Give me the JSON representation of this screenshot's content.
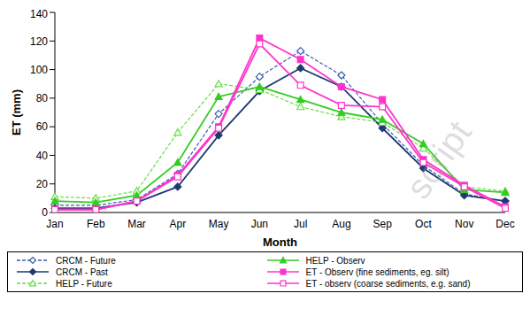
{
  "chart_data": {
    "type": "line",
    "x_label": "Month",
    "y_label": "ET (mm)",
    "categories": [
      "Jan",
      "Feb",
      "Mar",
      "Apr",
      "May",
      "Jun",
      "Jul",
      "Aug",
      "Sep",
      "Oct",
      "Nov",
      "Dec"
    ],
    "ylim": [
      0,
      140
    ],
    "yticks": [
      0,
      20,
      40,
      60,
      80,
      100,
      120,
      140
    ],
    "grid": false,
    "legend": "bottom",
    "annotations": [
      "script"
    ],
    "series": [
      {
        "name": "CRCM - Future",
        "color": "#3b5bb0",
        "marker": "diamond-open",
        "line_style": "dashed",
        "values": [
          5,
          5,
          9,
          27,
          69,
          95,
          113,
          96,
          62,
          33,
          13,
          8
        ]
      },
      {
        "name": "CRCM - Past",
        "color": "#1f3a6e",
        "marker": "diamond",
        "line_style": "solid",
        "values": [
          3,
          3,
          7,
          18,
          54,
          85,
          101,
          88,
          59,
          31,
          12,
          8
        ]
      },
      {
        "name": "HELP - Future",
        "color": "#66dd44",
        "marker": "triangle-open",
        "line_style": "dashed",
        "values": [
          11,
          10,
          15,
          56,
          90,
          86,
          74,
          67,
          63,
          45,
          18,
          15
        ]
      },
      {
        "name": "HELP - Observ",
        "color": "#33cc22",
        "marker": "triangle",
        "line_style": "solid",
        "values": [
          8,
          7,
          12,
          35,
          81,
          88,
          79,
          70,
          65,
          48,
          16,
          14
        ]
      },
      {
        "name": "ET - Observ (fine sediments, eg. silt)",
        "color": "#ff33cc",
        "marker": "square",
        "line_style": "solid",
        "values": [
          2,
          2,
          8,
          26,
          60,
          122,
          107,
          88,
          79,
          37,
          19,
          4
        ]
      },
      {
        "name": "ET - observ (coarse sediments, e.g. sand)",
        "color": "#ff33cc",
        "marker": "square-open",
        "line_style": "solid",
        "values": [
          2,
          2,
          8,
          25,
          59,
          118,
          89,
          75,
          74,
          35,
          18,
          3
        ]
      }
    ]
  }
}
